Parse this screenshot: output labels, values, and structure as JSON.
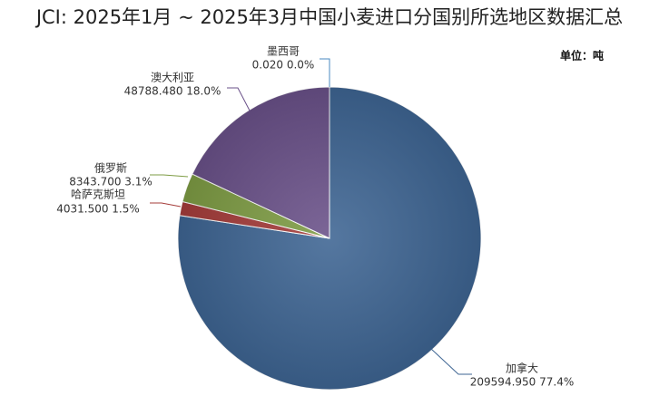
{
  "chart_data": {
    "type": "pie",
    "title": "JCI: 2025年1月 ~ 2025年3月中国小麦进口分国别所选地区数据汇总",
    "unit": "单位：吨",
    "categories": [
      "加拿大",
      "哈萨克斯坦",
      "俄罗斯",
      "澳大利亚",
      "墨西哥"
    ],
    "values": [
      209594.95,
      4031.5,
      8343.7,
      48788.48,
      0.02
    ],
    "value_labels": [
      "209594.950  77.4%",
      "4031.500  1.5%",
      "8343.700  3.1%",
      "48788.480  18.0%",
      "0.020  0.0%"
    ],
    "colors": [
      "#3e6593",
      "#a53c3a",
      "#7e9c44",
      "#6a5189",
      "#4a8ac0"
    ]
  }
}
